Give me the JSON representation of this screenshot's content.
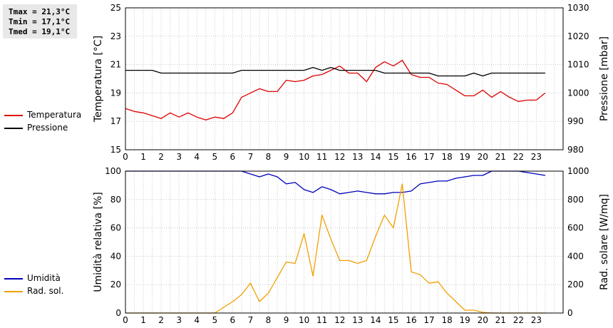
{
  "stats": {
    "tmax": "Tmax = 21,3°C",
    "tmin": "Tmin = 17,1°C",
    "tmed": "Tmed = 19,1°C"
  },
  "chart_data": [
    {
      "type": "line",
      "ylabel_left": "Temperatura [°C]",
      "ylabel_right": "Pressione [mbar]",
      "xlim": [
        0,
        24.5
      ],
      "ylim_left": [
        15,
        25
      ],
      "ylim_right": [
        980,
        1030
      ],
      "x_ticks": [
        0,
        1,
        2,
        3,
        4,
        5,
        6,
        7,
        8,
        9,
        10,
        11,
        12,
        13,
        14,
        15,
        16,
        17,
        18,
        19,
        20,
        21,
        22,
        23
      ],
      "y_ticks_left": [
        15,
        17,
        19,
        21,
        23,
        25
      ],
      "y_ticks_right": [
        980,
        990,
        1000,
        1010,
        1020,
        1030
      ],
      "grid": true,
      "series": [
        {
          "name": "Temperatura",
          "axis": "left",
          "color": "#dd0000",
          "x": [
            0,
            0.5,
            1,
            1.5,
            2,
            2.5,
            3,
            3.5,
            4,
            4.5,
            5,
            5.5,
            6,
            6.5,
            7,
            7.5,
            8,
            8.5,
            9,
            9.5,
            10,
            10.5,
            11,
            11.5,
            12,
            12.5,
            13,
            13.5,
            14,
            14.5,
            15,
            15.5,
            16,
            16.5,
            17,
            17.5,
            18,
            18.5,
            19,
            19.5,
            20,
            20.5,
            21,
            21.5,
            22,
            22.5,
            23,
            23.5
          ],
          "values": [
            17.9,
            17.7,
            17.6,
            17.4,
            17.2,
            17.6,
            17.3,
            17.6,
            17.3,
            17.1,
            17.3,
            17.2,
            17.6,
            18.7,
            19.0,
            19.3,
            19.1,
            19.1,
            19.9,
            19.8,
            19.9,
            20.2,
            20.3,
            20.6,
            20.9,
            20.4,
            20.4,
            19.8,
            20.8,
            21.2,
            20.9,
            21.3,
            20.3,
            20.1,
            20.1,
            19.7,
            19.6,
            19.2,
            18.8,
            18.8,
            19.2,
            18.7,
            19.1,
            18.7,
            18.4,
            18.5,
            18.5,
            19.0
          ]
        },
        {
          "name": "Pressione",
          "axis": "right",
          "color": "#000000",
          "x": [
            0,
            0.5,
            1,
            1.5,
            2,
            2.5,
            3,
            3.5,
            4,
            4.5,
            5,
            5.5,
            6,
            6.5,
            7,
            7.5,
            8,
            8.5,
            9,
            9.5,
            10,
            10.5,
            11,
            11.5,
            12,
            12.5,
            13,
            13.5,
            14,
            14.5,
            15,
            15.5,
            16,
            16.5,
            17,
            17.5,
            18,
            18.5,
            19,
            19.5,
            20,
            20.5,
            21,
            21.5,
            22,
            22.5,
            23,
            23.5
          ],
          "values": [
            1008,
            1008,
            1008,
            1008,
            1007,
            1007,
            1007,
            1007,
            1007,
            1007,
            1007,
            1007,
            1007,
            1008,
            1008,
            1008,
            1008,
            1008,
            1008,
            1008,
            1008,
            1009,
            1008,
            1009,
            1008,
            1008,
            1008,
            1008,
            1008,
            1007,
            1007,
            1007,
            1007,
            1007,
            1007,
            1006,
            1006,
            1006,
            1006,
            1007,
            1006,
            1007,
            1007,
            1007,
            1007,
            1007,
            1007,
            1007
          ]
        }
      ]
    },
    {
      "type": "line",
      "ylabel_left": "Umidità relativa [%]",
      "ylabel_right": "Rad. solare [W/mq]",
      "xlim": [
        0,
        24.5
      ],
      "ylim_left": [
        0,
        100
      ],
      "ylim_right": [
        0,
        1000
      ],
      "x_ticks": [
        0,
        1,
        2,
        3,
        4,
        5,
        6,
        7,
        8,
        9,
        10,
        11,
        12,
        13,
        14,
        15,
        16,
        17,
        18,
        19,
        20,
        21,
        22,
        23
      ],
      "y_ticks_left": [
        0,
        20,
        40,
        60,
        80,
        100
      ],
      "y_ticks_right": [
        0,
        200,
        400,
        600,
        800,
        1000
      ],
      "grid": true,
      "series": [
        {
          "name": "Umidità",
          "axis": "left",
          "color": "#0000bb",
          "x": [
            0,
            0.5,
            1,
            1.5,
            2,
            2.5,
            3,
            3.5,
            4,
            4.5,
            5,
            5.5,
            6,
            6.5,
            7,
            7.5,
            8,
            8.5,
            9,
            9.5,
            10,
            10.5,
            11,
            11.5,
            12,
            12.5,
            13,
            13.5,
            14,
            14.5,
            15,
            15.5,
            16,
            16.5,
            17,
            17.5,
            18,
            18.5,
            19,
            19.5,
            20,
            20.5,
            21,
            21.5,
            22,
            22.5,
            23,
            23.5
          ],
          "values": [
            100,
            100,
            100,
            100,
            100,
            100,
            100,
            100,
            100,
            100,
            100,
            100,
            100,
            100,
            98,
            96,
            98,
            96,
            91,
            92,
            87,
            85,
            89,
            87,
            84,
            85,
            86,
            85,
            84,
            84,
            85,
            85,
            86,
            91,
            92,
            93,
            93,
            95,
            96,
            97,
            97,
            100,
            100,
            100,
            100,
            99,
            98,
            97
          ]
        },
        {
          "name": "Rad. sol.",
          "axis": "right",
          "color": "#f0a000",
          "x": [
            0,
            0.5,
            1,
            1.5,
            2,
            2.5,
            3,
            3.5,
            4,
            4.5,
            5,
            5.5,
            6,
            6.5,
            7,
            7.5,
            8,
            8.5,
            9,
            9.5,
            10,
            10.5,
            11,
            11.5,
            12,
            12.5,
            13,
            13.5,
            14,
            14.5,
            15,
            15.5,
            16,
            16.5,
            17,
            17.5,
            18,
            18.5,
            19,
            19.5,
            20,
            20.5,
            21,
            21.5,
            22,
            22.5,
            23,
            23.5
          ],
          "values": [
            0,
            0,
            0,
            0,
            0,
            0,
            0,
            0,
            0,
            0,
            0,
            40,
            80,
            130,
            210,
            80,
            140,
            250,
            360,
            350,
            560,
            260,
            690,
            520,
            370,
            370,
            350,
            370,
            540,
            690,
            600,
            910,
            290,
            270,
            210,
            220,
            140,
            80,
            20,
            20,
            5,
            0,
            0,
            0,
            0,
            0,
            0,
            0
          ]
        }
      ]
    }
  ]
}
